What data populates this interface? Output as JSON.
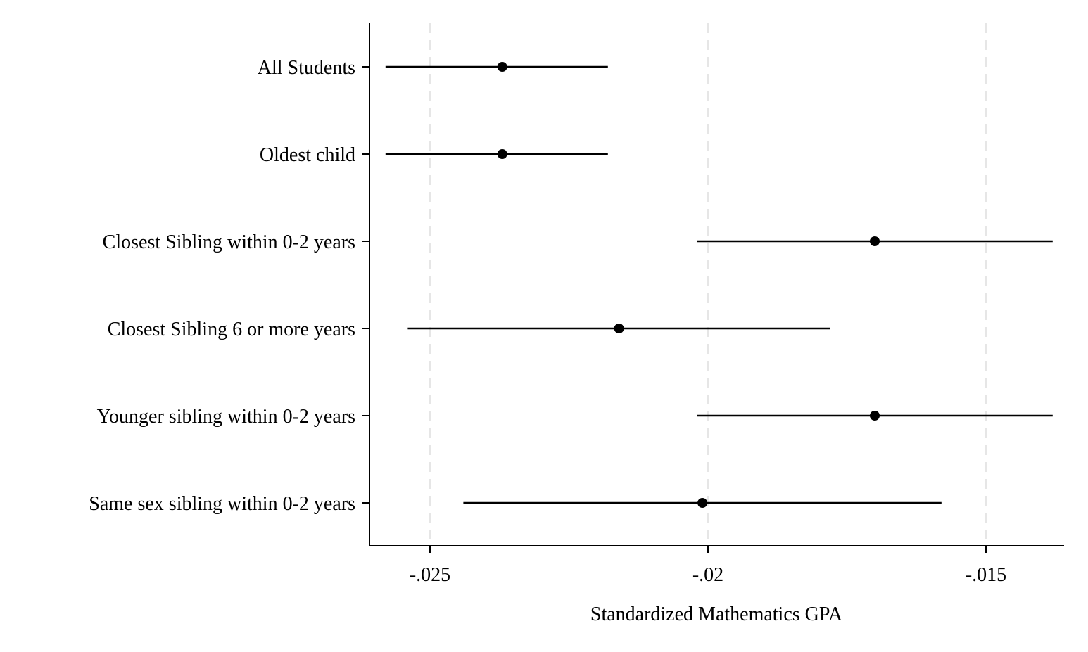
{
  "chart_data": {
    "type": "scatter",
    "subtype": "coefficient-plot",
    "xlabel": "Standardized Mathematics GPA",
    "ylabel": "",
    "xlim": [
      -0.0261,
      -0.0139
    ],
    "xticks": [
      {
        "value": -0.025,
        "label": "-.025"
      },
      {
        "value": -0.02,
        "label": "-.02"
      },
      {
        "value": -0.015,
        "label": "-.015"
      }
    ],
    "grid": "vertical dashed at x ticks",
    "colors": {
      "marker": "#000000",
      "grid": "#e6e6e6",
      "axis": "#000000"
    },
    "categories": [
      "All Students",
      "Oldest child",
      "Closest Sibling within 0-2 years",
      "Closest Sibling 6 or more years",
      "Younger sibling within 0-2 years",
      "Same sex sibling within 0-2 years"
    ],
    "points": [
      {
        "label": "All Students",
        "estimate": -0.0237,
        "ci_low": -0.0258,
        "ci_high": -0.0218
      },
      {
        "label": "Oldest child",
        "estimate": -0.0237,
        "ci_low": -0.0258,
        "ci_high": -0.0218
      },
      {
        "label": "Closest Sibling within 0-2 years",
        "estimate": -0.017,
        "ci_low": -0.0202,
        "ci_high": -0.0138
      },
      {
        "label": "Closest Sibling 6 or more years",
        "estimate": -0.0216,
        "ci_low": -0.0254,
        "ci_high": -0.0178
      },
      {
        "label": "Younger sibling within 0-2 years",
        "estimate": -0.017,
        "ci_low": -0.0202,
        "ci_high": -0.0138
      },
      {
        "label": "Same sex sibling within 0-2 years",
        "estimate": -0.0201,
        "ci_low": -0.0244,
        "ci_high": -0.0158
      }
    ]
  }
}
